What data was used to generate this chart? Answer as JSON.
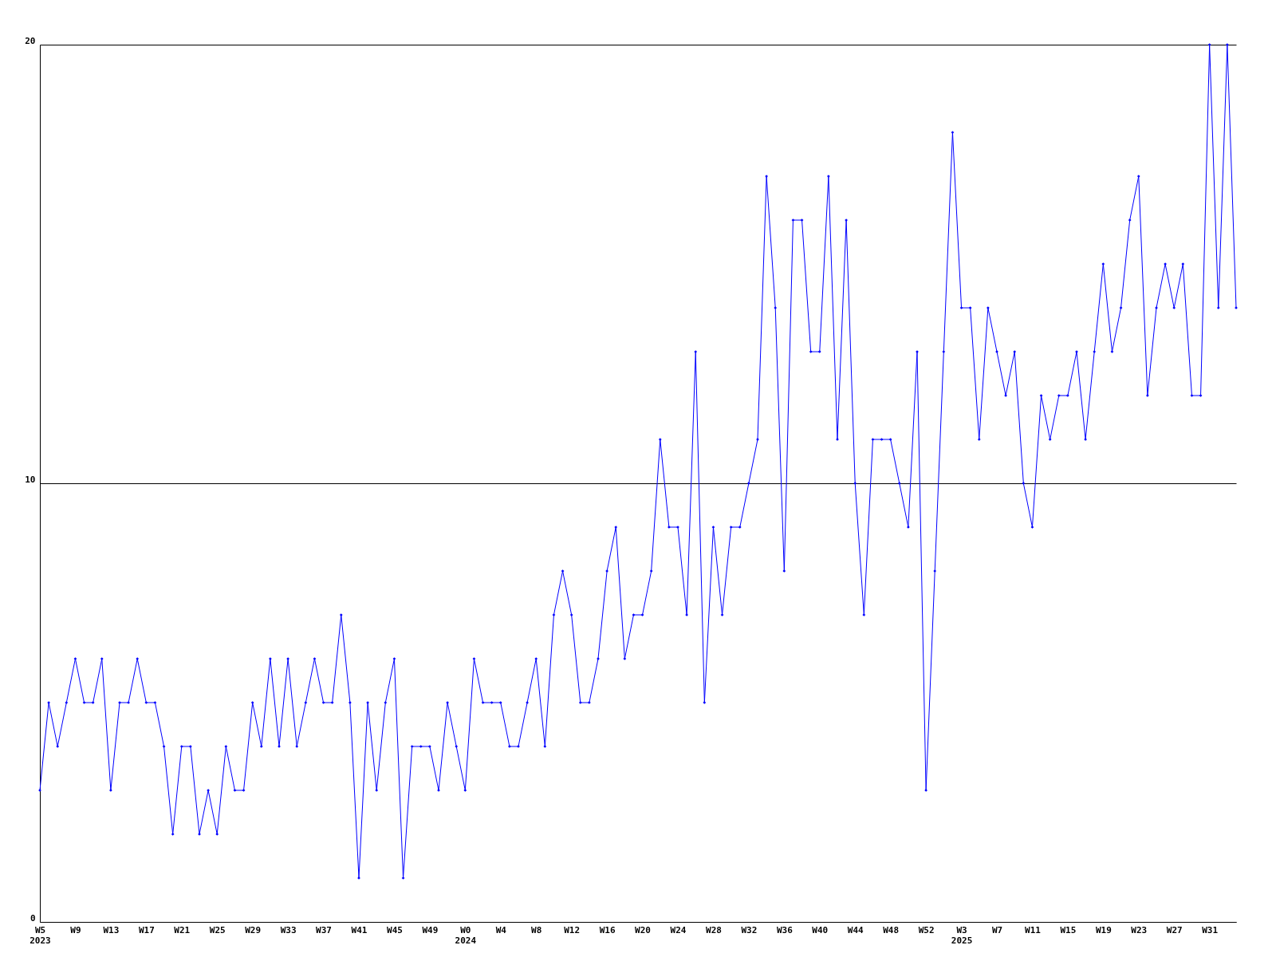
{
  "chart_data": {
    "type": "line",
    "categories": [
      "W5\n2023",
      null,
      null,
      null,
      "W9",
      null,
      null,
      null,
      "W13",
      null,
      null,
      null,
      "W17",
      null,
      null,
      null,
      "W21",
      null,
      null,
      null,
      "W25",
      null,
      null,
      null,
      "W29",
      null,
      null,
      null,
      "W33",
      null,
      null,
      null,
      "W37",
      null,
      null,
      null,
      "W41",
      null,
      null,
      null,
      "W45",
      null,
      null,
      null,
      "W49",
      null,
      null,
      null,
      "W0\n2024",
      null,
      null,
      null,
      "W4",
      null,
      null,
      null,
      "W8",
      null,
      null,
      null,
      "W12",
      null,
      null,
      null,
      "W16",
      null,
      null,
      null,
      "W20",
      null,
      null,
      null,
      "W24",
      null,
      null,
      null,
      "W28",
      null,
      null,
      null,
      "W32",
      null,
      null,
      null,
      "W36",
      null,
      null,
      null,
      "W40",
      null,
      null,
      null,
      "W44",
      null,
      null,
      null,
      "W48",
      null,
      null,
      null,
      "W52",
      null,
      null,
      null,
      "W3\n2025",
      null,
      null,
      null,
      "W7",
      null,
      null,
      null,
      "W11",
      null,
      null,
      null,
      "W15",
      null,
      null,
      null,
      "W19",
      null,
      null,
      null,
      "W23",
      null,
      null,
      null,
      "W27",
      null,
      null,
      null,
      "W31",
      null,
      null,
      null
    ],
    "series": [
      {
        "color": "#0000ff",
        "values": [
          3,
          5,
          4,
          5,
          6,
          5,
          5,
          6,
          3,
          5,
          5,
          6,
          5,
          5,
          4,
          2,
          4,
          4,
          2,
          3,
          2,
          4,
          3,
          3,
          5,
          4,
          6,
          4,
          6,
          4,
          5,
          6,
          5,
          5,
          7,
          5,
          1,
          5,
          3,
          5,
          6,
          1,
          4,
          4,
          4,
          3,
          5,
          4,
          3,
          6,
          5,
          5,
          5,
          4,
          4,
          5,
          6,
          4,
          7,
          8,
          7,
          5,
          5,
          6,
          8,
          9,
          6,
          7,
          7,
          8,
          11,
          9,
          9,
          7,
          13,
          5,
          9,
          7,
          9,
          9,
          10,
          11,
          17,
          14,
          8,
          16,
          16,
          13,
          13,
          17,
          11,
          16,
          10,
          7,
          11,
          11,
          11,
          10,
          9,
          13,
          3,
          8,
          13,
          18,
          14,
          14,
          11,
          14,
          13,
          12,
          13,
          10,
          9,
          12,
          11,
          12,
          12,
          13,
          11,
          13,
          15,
          13,
          14,
          16,
          17,
          12,
          14,
          15,
          14,
          15,
          12,
          12,
          20,
          14,
          20,
          14
        ]
      }
    ],
    "ylim": [
      0,
      20
    ],
    "yticks": [
      0,
      10,
      20
    ],
    "grid": "y",
    "marker": "diamond",
    "line_style": "solid"
  }
}
